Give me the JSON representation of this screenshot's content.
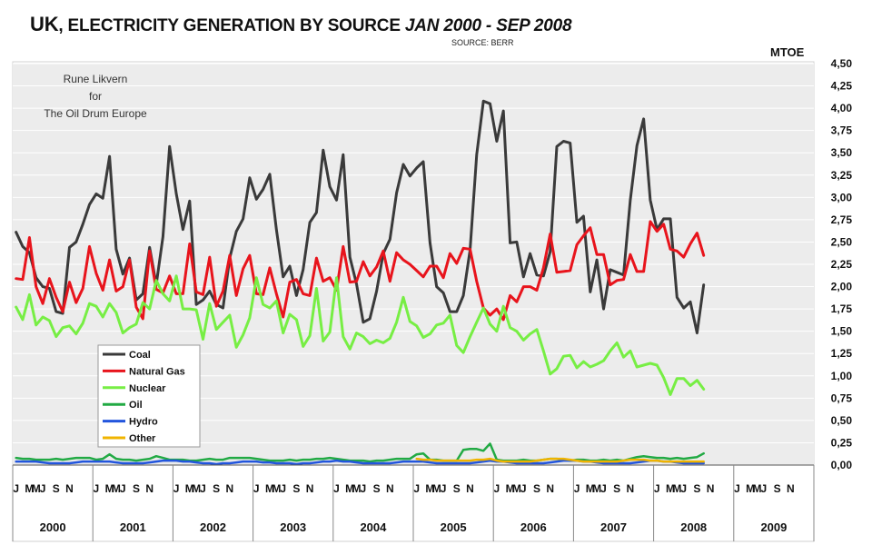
{
  "header": {
    "title_prefix": "UK",
    "title_main": ", ELECTRICITY GENERATION BY SOURCE ",
    "title_period": "JAN 2000 - SEP 2008",
    "source": "SOURCE: BERR",
    "unit": "MTOE"
  },
  "credit": {
    "line1": "Rune Likvern",
    "line2": "for",
    "line3": "The Oil Drum Europe"
  },
  "chart_data": {
    "type": "line",
    "title": "UK, ELECTRICITY GENERATION BY SOURCE JAN 2000 - SEP 2008",
    "ylabel": "MTOE",
    "ylim": [
      0,
      4.5
    ],
    "yticks": [
      "0,00",
      "0,25",
      "0,50",
      "0,75",
      "1,00",
      "1,25",
      "1,50",
      "1,75",
      "2,00",
      "2,25",
      "2,50",
      "2,75",
      "3,00",
      "3,25",
      "3,50",
      "3,75",
      "4,00",
      "4,25",
      "4,50"
    ],
    "y_axis_side": "right",
    "grid": true,
    "legend_position": "left-middle",
    "x_start": "2000-01",
    "month_labels": [
      "J",
      "",
      "M",
      "M",
      "J",
      "",
      "S",
      "",
      "N",
      ""
    ],
    "years": [
      "2000",
      "2001",
      "2002",
      "2003",
      "2004",
      "2005",
      "2006",
      "2007",
      "2008",
      "2009"
    ],
    "series": [
      {
        "name": "Coal",
        "color": "#3a3a3a",
        "values": [
          2.61,
          2.45,
          2.38,
          2.1,
          2.0,
          1.98,
          1.72,
          1.7,
          2.44,
          2.5,
          2.7,
          2.92,
          3.04,
          2.99,
          3.46,
          2.42,
          2.14,
          2.32,
          1.85,
          1.92,
          2.44,
          2.02,
          2.56,
          3.57,
          3.04,
          2.64,
          2.96,
          1.8,
          1.85,
          1.95,
          1.8,
          1.76,
          2.32,
          2.62,
          2.76,
          3.22,
          2.98,
          3.09,
          3.26,
          2.64,
          2.11,
          2.23,
          1.9,
          2.19,
          2.72,
          2.83,
          3.53,
          3.12,
          2.97,
          3.48,
          2.33,
          2.03,
          1.6,
          1.64,
          1.95,
          2.37,
          2.53,
          3.05,
          3.37,
          3.24,
          3.33,
          3.4,
          2.49,
          2.0,
          1.93,
          1.72,
          1.72,
          1.9,
          2.41,
          3.48,
          4.08,
          4.05,
          3.63,
          3.97,
          2.49,
          2.5,
          2.11,
          2.37,
          2.13,
          2.12,
          2.39,
          3.57,
          3.63,
          3.61,
          2.72,
          2.79,
          1.94,
          2.3,
          1.75,
          2.19,
          2.16,
          2.13,
          2.97,
          3.58,
          3.88,
          2.97,
          2.64,
          2.76,
          2.76,
          1.88,
          1.76,
          1.83,
          1.48,
          2.02
        ]
      },
      {
        "name": "Natural Gas",
        "color": "#e8141c",
        "values": [
          2.09,
          2.08,
          2.55,
          2.0,
          1.81,
          2.09,
          1.88,
          1.72,
          2.05,
          1.82,
          1.98,
          2.45,
          2.15,
          1.96,
          2.3,
          1.95,
          2.0,
          2.3,
          1.77,
          1.64,
          2.4,
          1.97,
          1.93,
          2.12,
          1.92,
          1.92,
          2.48,
          1.94,
          1.91,
          2.33,
          1.78,
          1.95,
          2.35,
          1.9,
          2.2,
          2.35,
          1.92,
          1.91,
          2.21,
          1.92,
          1.66,
          2.05,
          2.08,
          1.92,
          1.9,
          2.32,
          2.06,
          2.1,
          1.96,
          2.45,
          2.05,
          2.06,
          2.28,
          2.12,
          2.22,
          2.4,
          2.06,
          2.38,
          2.3,
          2.25,
          2.18,
          2.11,
          2.23,
          2.23,
          2.1,
          2.37,
          2.26,
          2.43,
          2.42,
          2.06,
          1.76,
          1.68,
          1.75,
          1.63,
          1.9,
          1.83,
          2.0,
          2.0,
          1.96,
          2.21,
          2.59,
          2.16,
          2.17,
          2.18,
          2.47,
          2.57,
          2.66,
          2.36,
          2.36,
          2.02,
          2.07,
          2.08,
          2.36,
          2.17,
          2.17,
          2.73,
          2.62,
          2.7,
          2.42,
          2.4,
          2.33,
          2.48,
          2.6,
          2.35
        ]
      },
      {
        "name": "Nuclear",
        "color": "#77ee44",
        "values": [
          1.77,
          1.63,
          1.91,
          1.57,
          1.66,
          1.62,
          1.44,
          1.54,
          1.56,
          1.47,
          1.59,
          1.81,
          1.78,
          1.66,
          1.81,
          1.71,
          1.48,
          1.54,
          1.58,
          1.82,
          1.75,
          2.07,
          1.92,
          1.84,
          2.12,
          1.75,
          1.75,
          1.74,
          1.41,
          1.81,
          1.52,
          1.6,
          1.68,
          1.32,
          1.46,
          1.65,
          2.1,
          1.8,
          1.76,
          1.84,
          1.48,
          1.69,
          1.63,
          1.33,
          1.45,
          1.98,
          1.39,
          1.49,
          2.1,
          1.44,
          1.3,
          1.48,
          1.44,
          1.36,
          1.4,
          1.37,
          1.42,
          1.6,
          1.88,
          1.61,
          1.56,
          1.43,
          1.47,
          1.57,
          1.59,
          1.68,
          1.34,
          1.26,
          1.44,
          1.6,
          1.76,
          1.58,
          1.5,
          1.78,
          1.54,
          1.5,
          1.4,
          1.47,
          1.52,
          1.28,
          1.02,
          1.08,
          1.22,
          1.23,
          1.09,
          1.16,
          1.1,
          1.13,
          1.17,
          1.28,
          1.37,
          1.21,
          1.28,
          1.1,
          1.12,
          1.14,
          1.12,
          0.98,
          0.79,
          0.97,
          0.97,
          0.89,
          0.95,
          0.85
        ]
      },
      {
        "name": "Oil",
        "color": "#22aa44",
        "values": [
          0.08,
          0.07,
          0.07,
          0.06,
          0.06,
          0.06,
          0.07,
          0.06,
          0.07,
          0.08,
          0.08,
          0.08,
          0.06,
          0.07,
          0.12,
          0.07,
          0.06,
          0.06,
          0.05,
          0.06,
          0.07,
          0.1,
          0.08,
          0.06,
          0.06,
          0.06,
          0.05,
          0.05,
          0.06,
          0.07,
          0.06,
          0.06,
          0.08,
          0.08,
          0.08,
          0.08,
          0.07,
          0.06,
          0.05,
          0.05,
          0.05,
          0.06,
          0.05,
          0.06,
          0.06,
          0.07,
          0.07,
          0.08,
          0.07,
          0.06,
          0.05,
          0.05,
          0.05,
          0.04,
          0.05,
          0.05,
          0.06,
          0.07,
          0.07,
          0.07,
          0.12,
          0.13,
          0.06,
          0.06,
          0.05,
          0.05,
          0.05,
          0.17,
          0.18,
          0.18,
          0.16,
          0.24,
          0.06,
          0.05,
          0.05,
          0.05,
          0.06,
          0.05,
          0.05,
          0.06,
          0.07,
          0.07,
          0.06,
          0.05,
          0.06,
          0.06,
          0.05,
          0.05,
          0.06,
          0.05,
          0.06,
          0.05,
          0.07,
          0.09,
          0.1,
          0.09,
          0.08,
          0.08,
          0.07,
          0.08,
          0.07,
          0.08,
          0.09,
          0.13
        ]
      },
      {
        "name": "Hydro",
        "color": "#2255dd",
        "values": [
          0.04,
          0.04,
          0.04,
          0.04,
          0.03,
          0.02,
          0.02,
          0.02,
          0.02,
          0.03,
          0.04,
          0.04,
          0.04,
          0.04,
          0.04,
          0.03,
          0.02,
          0.02,
          0.02,
          0.02,
          0.03,
          0.04,
          0.05,
          0.05,
          0.05,
          0.04,
          0.04,
          0.03,
          0.02,
          0.02,
          0.01,
          0.02,
          0.02,
          0.03,
          0.04,
          0.04,
          0.04,
          0.03,
          0.03,
          0.02,
          0.02,
          0.02,
          0.01,
          0.02,
          0.02,
          0.03,
          0.04,
          0.04,
          0.05,
          0.04,
          0.04,
          0.03,
          0.02,
          0.02,
          0.02,
          0.02,
          0.02,
          0.03,
          0.04,
          0.04,
          0.04,
          0.04,
          0.03,
          0.02,
          0.02,
          0.02,
          0.02,
          0.02,
          0.02,
          0.03,
          0.04,
          0.05,
          0.04,
          0.04,
          0.03,
          0.02,
          0.02,
          0.02,
          0.02,
          0.02,
          0.03,
          0.04,
          0.05,
          0.05,
          0.05,
          0.04,
          0.04,
          0.03,
          0.02,
          0.02,
          0.02,
          0.02,
          0.02,
          0.03,
          0.04,
          0.05,
          0.05,
          0.04,
          0.04,
          0.03,
          0.02,
          0.02,
          0.02,
          0.02
        ]
      },
      {
        "name": "Other",
        "color": "#f0b400",
        "values": [
          null,
          null,
          null,
          null,
          null,
          null,
          null,
          null,
          null,
          null,
          null,
          null,
          null,
          null,
          null,
          null,
          null,
          null,
          null,
          null,
          null,
          null,
          null,
          null,
          null,
          null,
          null,
          null,
          null,
          null,
          null,
          null,
          null,
          null,
          null,
          null,
          null,
          null,
          null,
          null,
          null,
          null,
          null,
          null,
          null,
          null,
          null,
          null,
          null,
          null,
          null,
          null,
          null,
          null,
          null,
          null,
          null,
          null,
          null,
          null,
          0.07,
          0.06,
          0.06,
          0.05,
          0.05,
          0.05,
          0.05,
          0.05,
          0.05,
          0.06,
          0.06,
          0.07,
          0.05,
          0.04,
          0.04,
          0.04,
          0.04,
          0.04,
          0.05,
          0.06,
          0.07,
          0.07,
          0.07,
          0.06,
          0.05,
          0.04,
          0.04,
          0.04,
          0.04,
          0.04,
          0.04,
          0.05,
          0.06,
          0.06,
          0.06,
          0.05,
          0.05,
          0.04,
          0.04,
          0.04,
          0.04,
          0.04,
          0.04,
          0.04
        ]
      }
    ]
  }
}
